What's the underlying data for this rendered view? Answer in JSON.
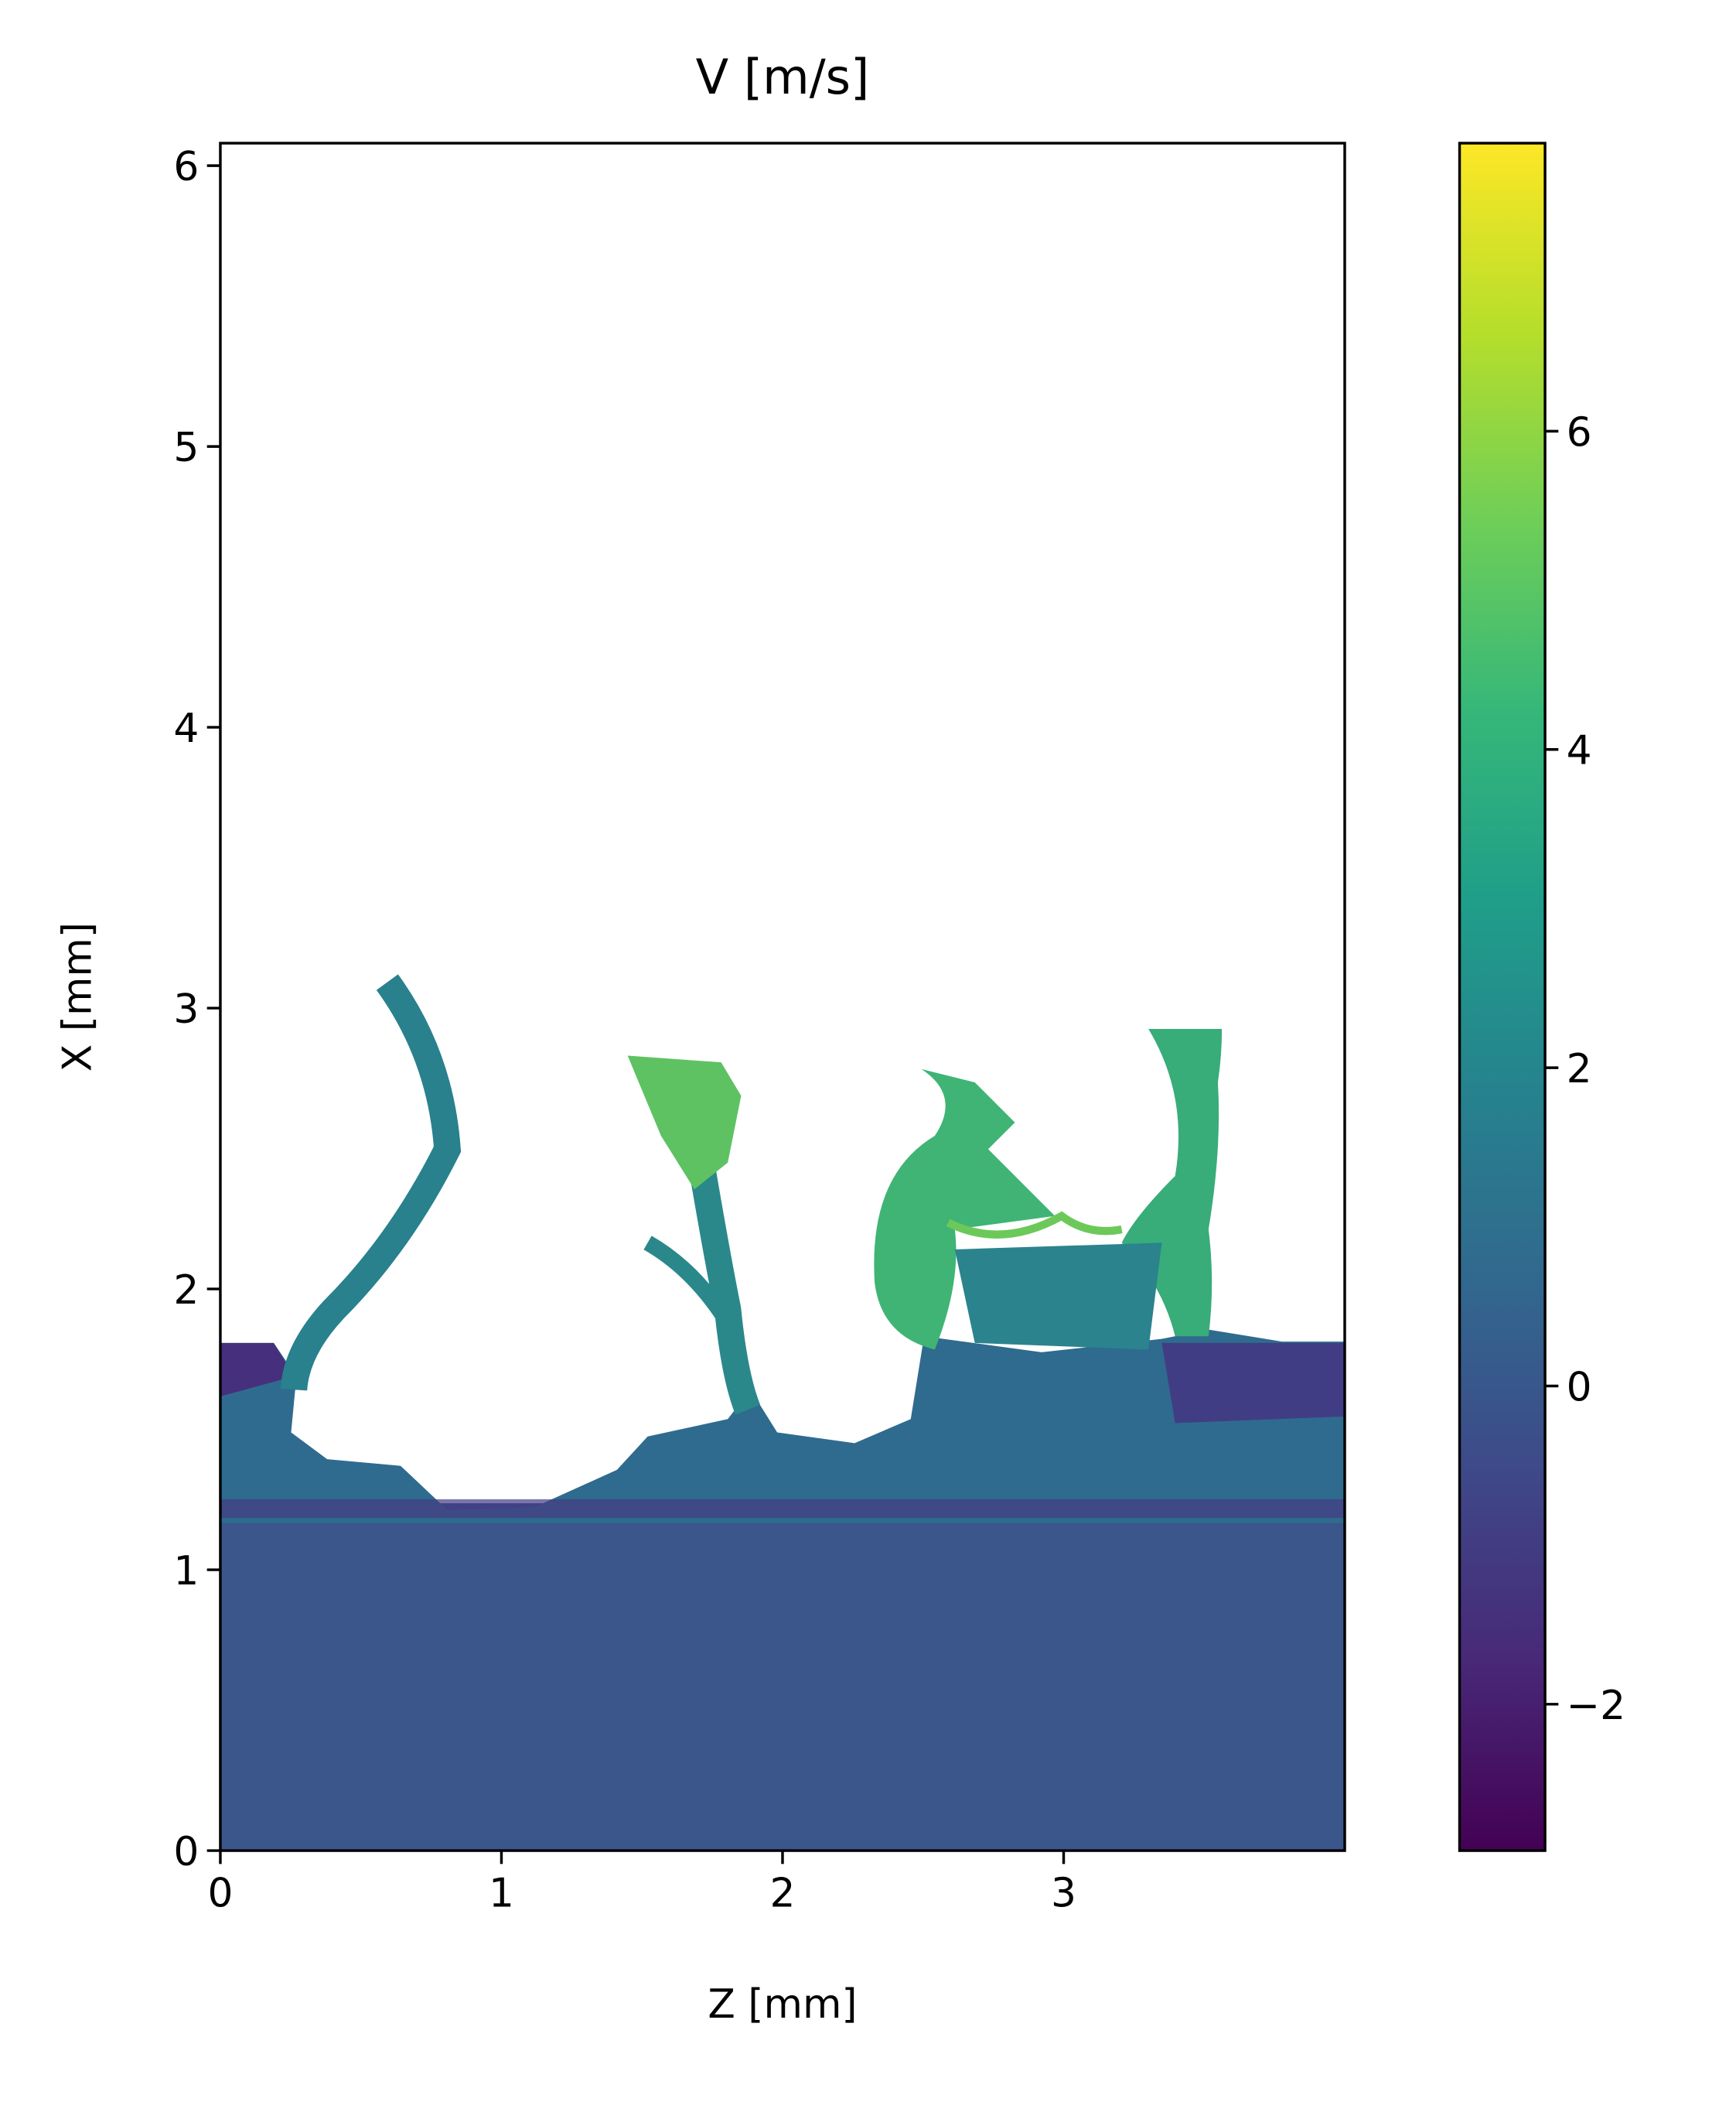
{
  "chart_data": {
    "type": "heatmap",
    "title": "V [m/s]",
    "xlabel": "Z [mm]",
    "ylabel": "X [mm]",
    "xlim": [
      0,
      4.0
    ],
    "ylim": [
      0,
      6.08
    ],
    "xticks": [
      0,
      1,
      2,
      3
    ],
    "yticks": [
      0,
      1,
      2,
      3,
      4,
      5,
      6
    ],
    "colorbar": {
      "cmap": "viridis",
      "clim": [
        -2.92,
        7.81
      ],
      "ticks": [
        {
          "value": -2,
          "label": "−2"
        },
        0,
        2,
        4,
        6
      ]
    }
  }
}
